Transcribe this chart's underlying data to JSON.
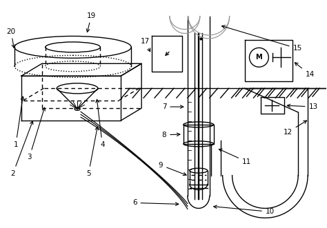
{
  "bg_color": "#ffffff",
  "line_color": "#000000",
  "fig_width": 4.74,
  "fig_height": 3.31,
  "dpi": 100
}
